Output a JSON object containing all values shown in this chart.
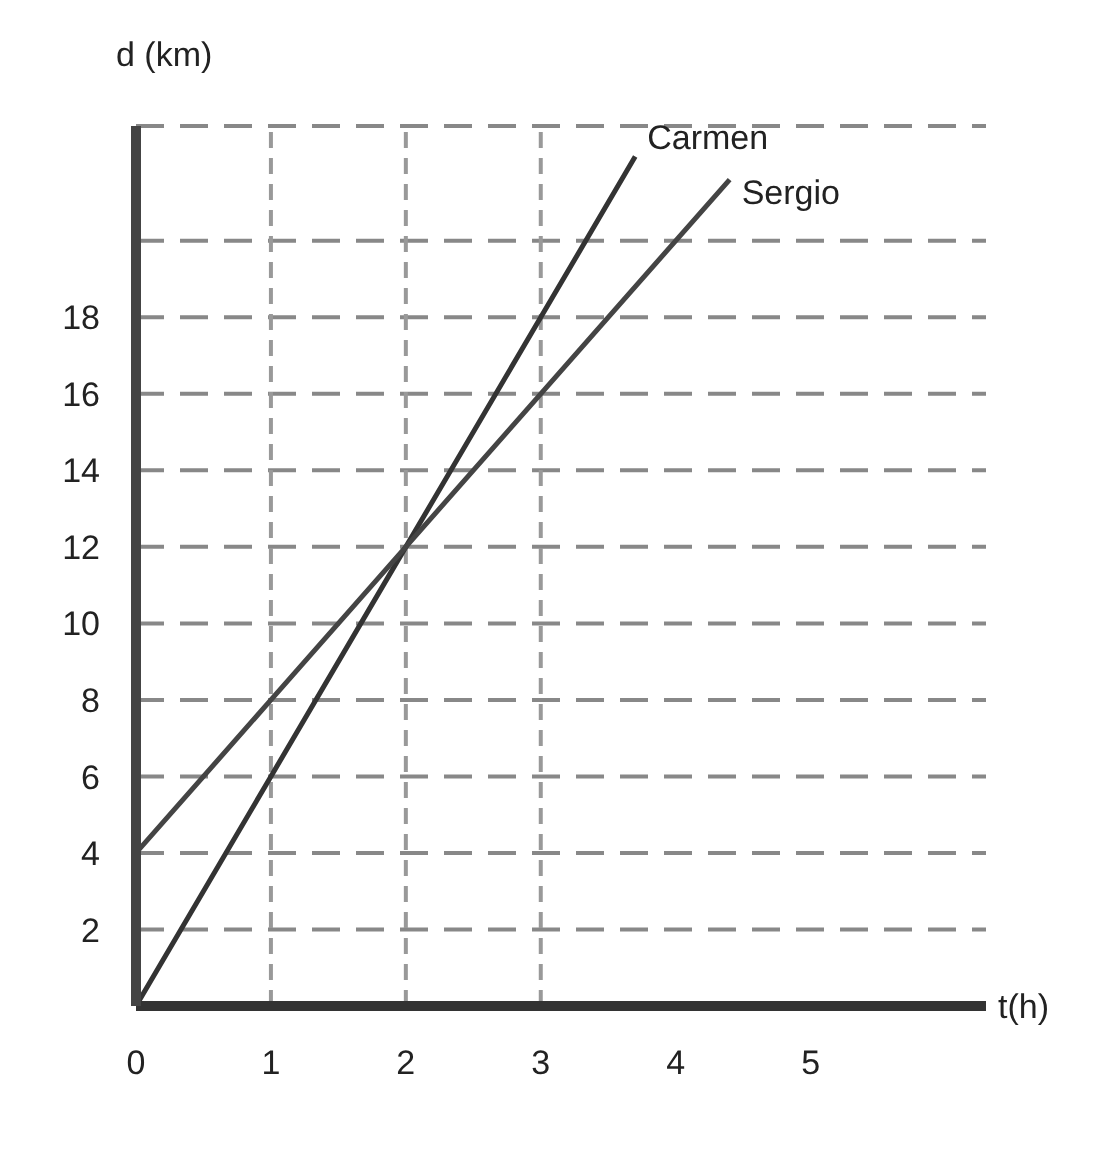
{
  "chart_data": {
    "type": "line",
    "xlabel": "t(h)",
    "ylabel": "d (km)",
    "xlim": [
      0,
      6.3
    ],
    "xticks": [
      0,
      1,
      2,
      3,
      4,
      5
    ],
    "ylim": [
      0,
      23
    ],
    "yticks": [
      2,
      4,
      6,
      8,
      10,
      12,
      14,
      16,
      18,
      {
        "value": 20,
        "label": null
      }
    ],
    "grid": "y",
    "marker": "none",
    "legend": false,
    "ref_lines": [
      {
        "axis": "x",
        "value": 1,
        "color": "#999999",
        "line_style": "dashed"
      },
      {
        "axis": "x",
        "value": 2,
        "color": "#999999",
        "line_style": "dashed"
      },
      {
        "axis": "x",
        "value": 3,
        "color": "#999999",
        "line_style": "dashed"
      }
    ],
    "series": [
      {
        "name": "Carmen",
        "color": "#333333",
        "x": [
          0,
          1,
          2,
          3,
          3.7
        ],
        "values": [
          0,
          6,
          12,
          18,
          22.2
        ]
      },
      {
        "name": "Sergio",
        "color": "#444444",
        "x": [
          0,
          1,
          2,
          3,
          4.4
        ],
        "values": [
          4,
          8,
          12,
          16,
          21.6
        ]
      }
    ]
  }
}
